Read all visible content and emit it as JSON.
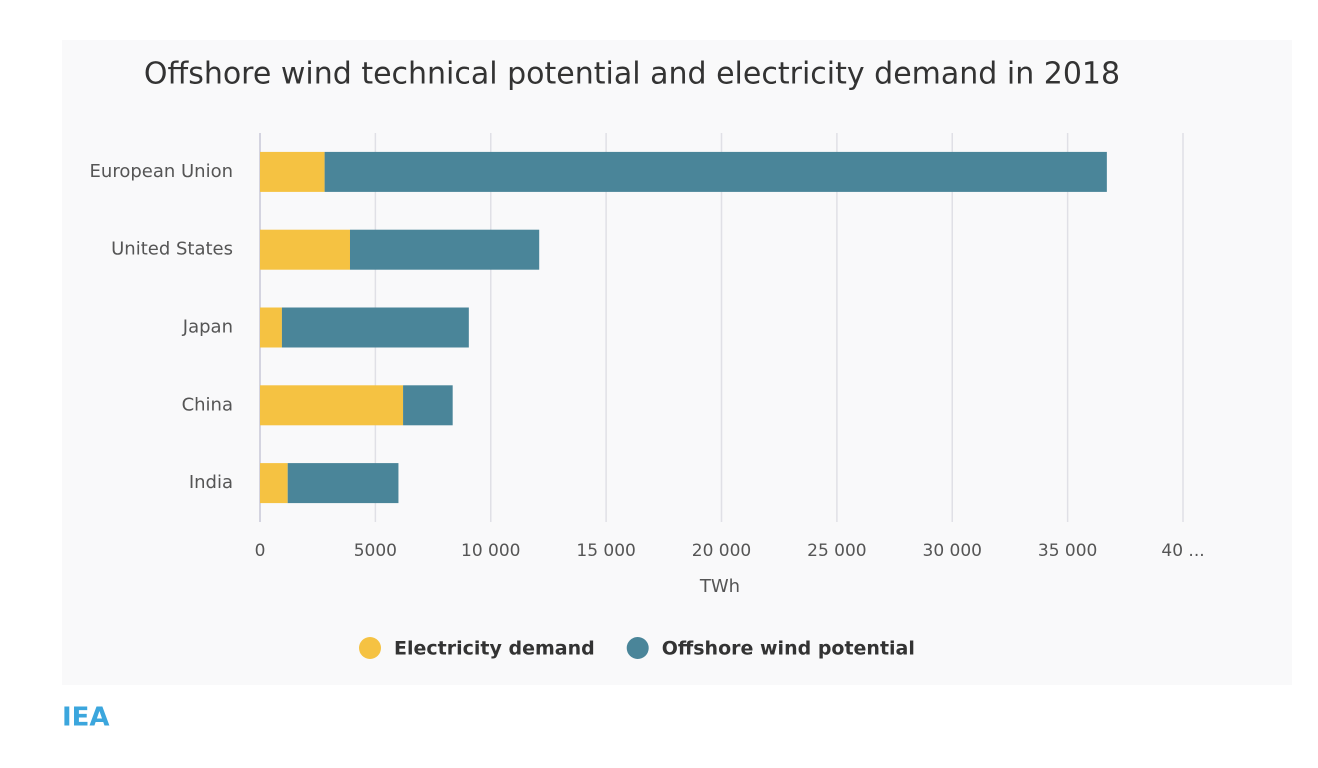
{
  "chart_data": {
    "type": "stacked_barh",
    "title": "Offshore wind technical potential and electricity demand in 2018",
    "categories": [
      "European Union",
      "United States",
      "Japan",
      "China",
      "India"
    ],
    "series": [
      {
        "name": "Electricity demand",
        "color": "#f5c242",
        "values": [
          2800,
          3900,
          950,
          6200,
          1200
        ]
      },
      {
        "name": "Offshore wind potential",
        "color": "#4a8599",
        "values": [
          33900,
          8200,
          8100,
          2150,
          4800
        ]
      }
    ],
    "xlabel": "TWh",
    "xlim": [
      0,
      40000
    ],
    "xticks": [
      0,
      5000,
      {
        "value": 10000,
        "label": "10 000"
      },
      {
        "value": 15000,
        "label": "15 000"
      },
      {
        "value": 20000,
        "label": "20 000"
      },
      {
        "value": 25000,
        "label": "25 000"
      },
      {
        "value": 30000,
        "label": "30 000"
      },
      {
        "value": 35000,
        "label": "35 000"
      },
      {
        "value": 40000,
        "label": "40 ..."
      }
    ],
    "grid": true,
    "legend": "bottom"
  },
  "footer": {
    "logo": "IEA"
  }
}
